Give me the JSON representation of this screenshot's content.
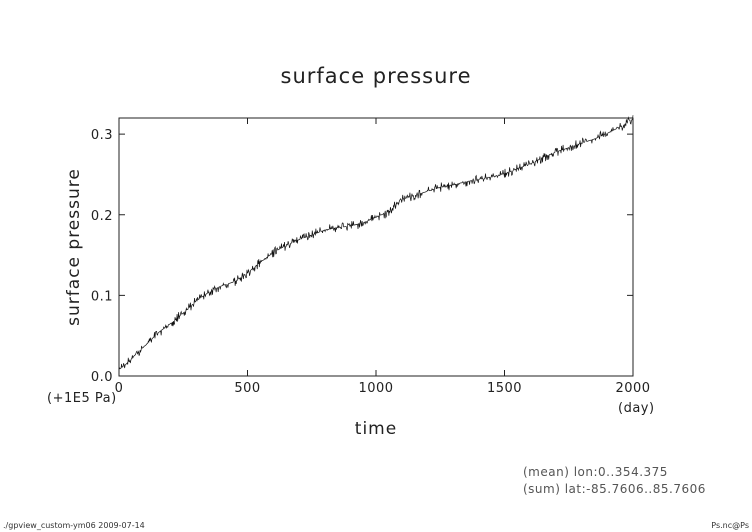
{
  "chart_data": {
    "type": "line",
    "title": "surface pressure",
    "xlabel": "time",
    "ylabel": "surface pressure",
    "x_unit": "(day)",
    "y_unit": "(+1E5 Pa)",
    "xlim": [
      0,
      2000
    ],
    "ylim": [
      0,
      0.32
    ],
    "x_ticks": [
      0,
      500,
      1000,
      1500,
      2000
    ],
    "x_tick_labels": [
      "0",
      "500",
      "1000",
      "1500",
      "2000"
    ],
    "y_ticks": [
      0,
      0.1,
      0.2,
      0.3
    ],
    "y_tick_labels": [
      "0.0",
      "0.1",
      "0.2",
      "0.3"
    ],
    "grid": false,
    "line_color": "#111111",
    "series": [
      {
        "x": [
          0,
          25,
          50,
          75,
          100,
          150,
          200,
          250,
          300,
          350,
          400,
          450,
          500,
          550,
          600,
          650,
          700,
          750,
          800,
          850,
          900,
          950,
          1000,
          1050,
          1100,
          1150,
          1200,
          1250,
          1300,
          1350,
          1400,
          1450,
          1500,
          1550,
          1600,
          1650,
          1700,
          1750,
          1800,
          1850,
          1900,
          1950,
          2000
        ],
        "y": [
          0.008,
          0.014,
          0.022,
          0.03,
          0.037,
          0.053,
          0.065,
          0.078,
          0.093,
          0.104,
          0.112,
          0.117,
          0.128,
          0.141,
          0.153,
          0.162,
          0.169,
          0.175,
          0.181,
          0.184,
          0.186,
          0.19,
          0.197,
          0.204,
          0.219,
          0.224,
          0.229,
          0.234,
          0.237,
          0.241,
          0.244,
          0.247,
          0.251,
          0.257,
          0.263,
          0.271,
          0.278,
          0.283,
          0.289,
          0.294,
          0.301,
          0.309,
          0.318
        ]
      }
    ]
  },
  "notes": {
    "mean": "(mean) lon:0..354.375",
    "sum": "(sum) lat:-85.7606..85.7606"
  },
  "footer": {
    "left": "./gpview_custom-ym06  2009-07-14",
    "right": "Ps.nc@Ps"
  }
}
